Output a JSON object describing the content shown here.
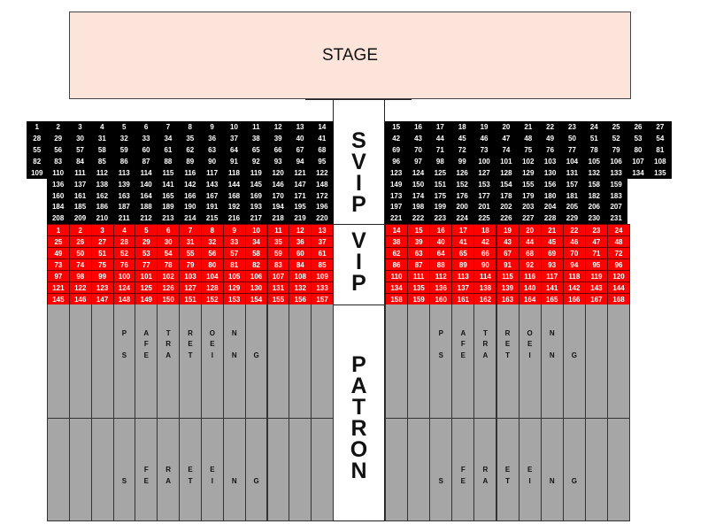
{
  "stage": {
    "label": "STAGE",
    "color": "#fce4da"
  },
  "aisle": {
    "svip_label": [
      "S",
      "V",
      "I",
      "P"
    ],
    "vip_label": [
      "V",
      "I",
      "P"
    ],
    "patron_label": [
      "P",
      "A",
      "T",
      "R",
      "O",
      "N"
    ]
  },
  "colors": {
    "svip": "#000000",
    "vip": "#ff0000",
    "patron": "#a6a6a6"
  },
  "svip": {
    "left_rows": [
      [
        1,
        2,
        3,
        4,
        5,
        6,
        7,
        8,
        9,
        10,
        11,
        12,
        13,
        14
      ],
      [
        28,
        29,
        30,
        31,
        32,
        33,
        34,
        35,
        36,
        37,
        38,
        39,
        40,
        41
      ],
      [
        55,
        56,
        57,
        58,
        59,
        60,
        61,
        62,
        63,
        64,
        65,
        66,
        67,
        68
      ],
      [
        82,
        83,
        84,
        85,
        86,
        87,
        88,
        89,
        90,
        91,
        92,
        93,
        94,
        95
      ],
      [
        109,
        110,
        111,
        112,
        113,
        114,
        115,
        116,
        117,
        118,
        119,
        120,
        121,
        122
      ],
      [
        136,
        137,
        138,
        139,
        140,
        141,
        142,
        143,
        144,
        145,
        146,
        147,
        148
      ],
      [
        160,
        161,
        162,
        163,
        164,
        165,
        166,
        167,
        168,
        169,
        170,
        171,
        172
      ],
      [
        184,
        185,
        186,
        187,
        188,
        189,
        190,
        191,
        192,
        193,
        194,
        195,
        196
      ],
      [
        208,
        209,
        210,
        211,
        212,
        213,
        214,
        215,
        216,
        217,
        218,
        219,
        220
      ]
    ],
    "right_rows": [
      [
        15,
        16,
        17,
        18,
        19,
        20,
        21,
        22,
        23,
        24,
        25,
        26,
        27
      ],
      [
        42,
        43,
        44,
        45,
        46,
        47,
        48,
        49,
        50,
        51,
        52,
        53,
        54
      ],
      [
        69,
        70,
        71,
        72,
        73,
        74,
        75,
        76,
        77,
        78,
        79,
        80,
        81
      ],
      [
        96,
        97,
        98,
        99,
        100,
        101,
        102,
        103,
        104,
        105,
        106,
        107,
        108
      ],
      [
        123,
        124,
        125,
        126,
        127,
        128,
        129,
        130,
        131,
        132,
        133,
        134,
        135
      ],
      [
        149,
        150,
        151,
        152,
        153,
        154,
        155,
        156,
        157,
        158,
        159
      ],
      [
        173,
        174,
        175,
        176,
        177,
        178,
        179,
        180,
        181,
        182,
        183
      ],
      [
        197,
        198,
        199,
        200,
        201,
        202,
        203,
        204,
        205,
        206,
        207
      ],
      [
        221,
        222,
        223,
        224,
        225,
        226,
        227,
        228,
        229,
        230,
        231
      ]
    ]
  },
  "vip": {
    "left_rows": [
      [
        1,
        2,
        3,
        4,
        5,
        6,
        7,
        8,
        9,
        10,
        11,
        12,
        13
      ],
      [
        25,
        26,
        27,
        28,
        29,
        30,
        31,
        32,
        33,
        34,
        35,
        36,
        37
      ],
      [
        49,
        50,
        51,
        52,
        53,
        54,
        55,
        56,
        57,
        58,
        59,
        60,
        61
      ],
      [
        73,
        74,
        75,
        76,
        77,
        78,
        79,
        80,
        81,
        82,
        83,
        84,
        85
      ],
      [
        97,
        98,
        99,
        100,
        101,
        102,
        103,
        104,
        105,
        106,
        107,
        108,
        109
      ],
      [
        121,
        122,
        123,
        124,
        125,
        126,
        127,
        128,
        129,
        130,
        131,
        132,
        133
      ],
      [
        145,
        146,
        147,
        148,
        149,
        150,
        151,
        152,
        153,
        154,
        155,
        156,
        157
      ]
    ],
    "right_rows": [
      [
        14,
        15,
        16,
        17,
        18,
        19,
        20,
        21,
        22,
        23,
        24
      ],
      [
        38,
        39,
        40,
        41,
        42,
        43,
        44,
        45,
        46,
        47,
        48
      ],
      [
        62,
        63,
        64,
        65,
        66,
        67,
        68,
        69,
        70,
        71,
        72
      ],
      [
        86,
        87,
        88,
        89,
        90,
        91,
        92,
        93,
        94,
        95,
        96
      ],
      [
        110,
        111,
        112,
        113,
        114,
        115,
        116,
        117,
        118,
        119,
        120
      ],
      [
        134,
        135,
        136,
        137,
        138,
        139,
        140,
        141,
        142,
        143,
        144
      ],
      [
        158,
        159,
        160,
        161,
        162,
        163,
        164,
        165,
        166,
        167,
        168
      ]
    ]
  },
  "patron": {
    "row_count": 19,
    "left_cols": 13,
    "right_cols": 11,
    "left_letters": [
      {
        "row": 2,
        "start_col": 3,
        "letters": [
          "P",
          "A",
          "T",
          "R",
          "O",
          "N"
        ]
      },
      {
        "row": 3,
        "start_col": 4,
        "letters": [
          "F",
          "R",
          "E",
          "E"
        ]
      },
      {
        "row": 4,
        "start_col": 3,
        "letters": [
          "S",
          "E",
          "A",
          "T",
          "I",
          "N",
          "G"
        ]
      },
      {
        "row": 14,
        "start_col": 4,
        "letters": [
          "F",
          "R",
          "E",
          "E"
        ]
      },
      {
        "row": 15,
        "start_col": 3,
        "letters": [
          "S",
          "E",
          "A",
          "T",
          "I",
          "N",
          "G"
        ]
      }
    ],
    "right_letters": [
      {
        "row": 2,
        "start_col": 2,
        "letters": [
          "P",
          "A",
          "T",
          "R",
          "O",
          "N"
        ]
      },
      {
        "row": 3,
        "start_col": 3,
        "letters": [
          "F",
          "R",
          "E",
          "E"
        ]
      },
      {
        "row": 4,
        "start_col": 2,
        "letters": [
          "S",
          "E",
          "A",
          "T",
          "I",
          "N",
          "G"
        ]
      },
      {
        "row": 14,
        "start_col": 3,
        "letters": [
          "F",
          "R",
          "E",
          "E"
        ]
      },
      {
        "row": 15,
        "start_col": 2,
        "letters": [
          "S",
          "E",
          "A",
          "T",
          "I",
          "N",
          "G"
        ]
      }
    ]
  }
}
